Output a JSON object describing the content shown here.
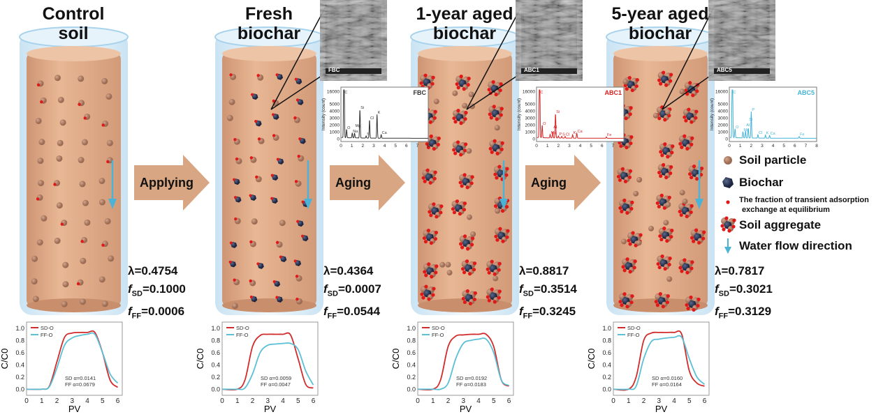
{
  "panels": [
    {
      "title_lines": [
        "Control",
        "soil"
      ],
      "lambda": "λ=0.4754",
      "f_sd": "=0.1000",
      "f_ff": "=0.0006",
      "particles": "soil"
    },
    {
      "title_lines": [
        "Fresh",
        "biochar"
      ],
      "lambda": "λ=0.4364",
      "f_sd": "=0.0007",
      "f_ff": "=0.0544",
      "particles": "biochar",
      "sem_label": "FBC"
    },
    {
      "title_lines": [
        "1-year aged",
        "biochar"
      ],
      "lambda": "λ=0.8817",
      "f_sd": "=0.3514",
      "f_ff": "=0.3245",
      "particles": "aggregate",
      "sem_label": "ABC1"
    },
    {
      "title_lines": [
        "5-year aged",
        "biochar"
      ],
      "lambda": "λ=0.7817",
      "f_sd": "=0.3021",
      "f_ff": "=0.3129",
      "particles": "aggregate",
      "sem_label": "ABC5"
    }
  ],
  "param_symbols": {
    "f": "f",
    "sd_sub": "SD",
    "ff_sub": "FF"
  },
  "process_arrows": [
    "Applying",
    "Aging",
    "Aging"
  ],
  "legend": {
    "soil_particle": "Soil particle",
    "biochar": "Biochar",
    "transient_line1": "The fraction of transient adsorption",
    "transient_line2": "exchange at equilibrium",
    "soil_aggregate": "Soil aggregate",
    "water_flow": "Water flow direction"
  },
  "colors": {
    "soil": "#b4826a",
    "biochar": "#2a3550",
    "adsorption_dot": "#e01818",
    "column": "#e2ad88",
    "glass": "#cfe6f5",
    "process_arrow": "#d9a683",
    "water_arrow": "#4bb4d6",
    "sd_curve": "#d22a2a",
    "ff_curve": "#5bbfd6",
    "eds_fbc": "#333333",
    "eds_abc1": "#d82020",
    "eds_abc5": "#44b4d6"
  },
  "chart_data": [
    {
      "type": "line",
      "xlabel": "PV",
      "ylabel": "C/C0",
      "xlim": [
        0,
        6.3
      ],
      "ylim": [
        -0.1,
        1.1
      ],
      "xticks": [
        "0",
        "1",
        "2",
        "3",
        "4",
        "5",
        "6"
      ],
      "yticks": [
        "0.0",
        "0.2",
        "0.4",
        "0.6",
        "0.8",
        "1.0"
      ],
      "legend": "top-left",
      "x": [
        0,
        1,
        1.5,
        2,
        2.5,
        3,
        3.5,
        4,
        4.5,
        5,
        5.5,
        6
      ],
      "series": [
        {
          "name": "SD-O",
          "values": [
            0,
            0,
            0.05,
            0.45,
            0.85,
            0.92,
            0.93,
            0.93,
            0.93,
            0.6,
            0.15,
            0.03
          ]
        },
        {
          "name": "FF-O",
          "values": [
            0,
            0,
            0.04,
            0.35,
            0.72,
            0.84,
            0.88,
            0.9,
            0.9,
            0.6,
            0.25,
            0.1
          ]
        }
      ],
      "annotation": [
        "SD α=0.0141",
        "FF  α=0.0679"
      ]
    },
    {
      "type": "line",
      "xlabel": "PV",
      "ylabel": "C/C0",
      "xlim": [
        0,
        6.3
      ],
      "ylim": [
        -0.1,
        1.1
      ],
      "xticks": [
        "0",
        "1",
        "2",
        "3",
        "4",
        "5",
        "6"
      ],
      "yticks": [
        "0.0",
        "0.2",
        "0.4",
        "0.6",
        "0.8",
        "1.0"
      ],
      "legend": "top-left",
      "x": [
        0,
        1,
        1.5,
        2,
        2.5,
        3,
        3.5,
        4,
        4.5,
        5,
        5.5,
        6
      ],
      "series": [
        {
          "name": "SD-O",
          "values": [
            0,
            0,
            0.15,
            0.7,
            0.88,
            0.9,
            0.9,
            0.9,
            0.89,
            0.5,
            0.08,
            0.02
          ]
        },
        {
          "name": "FF-O",
          "values": [
            0,
            0,
            0.02,
            0.25,
            0.6,
            0.72,
            0.74,
            0.75,
            0.75,
            0.65,
            0.3,
            0.07
          ]
        }
      ],
      "annotation": [
        "SD α=0.0059",
        "FF  α=0.0047"
      ]
    },
    {
      "type": "line",
      "xlabel": "PV",
      "ylabel": "C/C0",
      "xlim": [
        0,
        6.3
      ],
      "ylim": [
        -0.1,
        1.1
      ],
      "xticks": [
        "0",
        "1",
        "2",
        "3",
        "4",
        "5",
        "6"
      ],
      "yticks": [
        "0.0",
        "0.2",
        "0.4",
        "0.6",
        "0.8",
        "1.0"
      ],
      "legend": "top-left",
      "x": [
        0,
        1,
        1.5,
        2,
        2.5,
        3,
        3.5,
        4,
        4.5,
        5,
        5.5,
        6
      ],
      "series": [
        {
          "name": "SD-O",
          "values": [
            0,
            0,
            0.15,
            0.7,
            0.87,
            0.89,
            0.9,
            0.9,
            0.9,
            0.7,
            0.15,
            0.05
          ]
        },
        {
          "name": "FF-O",
          "values": [
            0,
            0,
            0,
            0.1,
            0.5,
            0.75,
            0.8,
            0.82,
            0.82,
            0.6,
            0.15,
            0.06
          ]
        }
      ],
      "annotation": [
        "SD α=0.0192",
        "FF  α=0.0183"
      ]
    },
    {
      "type": "line",
      "xlabel": "PV",
      "ylabel": "C/C0",
      "xlim": [
        0,
        6.3
      ],
      "ylim": [
        -0.1,
        1.1
      ],
      "xticks": [
        "0",
        "1",
        "2",
        "3",
        "4",
        "5",
        "6"
      ],
      "yticks": [
        "0.0",
        "0.2",
        "0.4",
        "0.6",
        "0.8",
        "1.0"
      ],
      "legend": "top-left",
      "x": [
        0,
        1,
        1.5,
        2,
        2.5,
        3,
        3.5,
        4,
        4.5,
        5,
        5.5,
        6
      ],
      "series": [
        {
          "name": "SD-O",
          "values": [
            0,
            0,
            0.2,
            0.8,
            0.92,
            0.93,
            0.93,
            0.93,
            0.9,
            0.3,
            0.1,
            0.05
          ]
        },
        {
          "name": "FF-O",
          "values": [
            0,
            0,
            0.05,
            0.5,
            0.78,
            0.82,
            0.84,
            0.85,
            0.85,
            0.5,
            0.2,
            0.08
          ]
        }
      ],
      "annotation": [
        "SD α=0.0160",
        "FF  α=0.0164"
      ]
    }
  ],
  "eds_data": [
    {
      "type": "line",
      "label": "FBC",
      "ylabel": "Intensity (count)",
      "xlim": [
        0,
        8
      ],
      "xticks": [
        "0",
        "1",
        "2",
        "3",
        "4",
        "5",
        "6",
        "7",
        "8"
      ],
      "yticks": [
        "0",
        "1000",
        "2000",
        "3000",
        "4000",
        "5000",
        "16000"
      ],
      "peaks": [
        [
          "C",
          0.28,
          16000
        ],
        [
          "O",
          0.52,
          1200
        ],
        [
          "Na",
          1.04,
          700
        ],
        [
          "Mg",
          1.25,
          700
        ],
        [
          "Si",
          1.74,
          4100
        ],
        [
          "S",
          2.31,
          300
        ],
        [
          "Cl",
          2.62,
          2600
        ],
        [
          "K",
          3.31,
          3400
        ],
        [
          "Ca",
          3.69,
          500
        ]
      ]
    },
    {
      "type": "line",
      "label": "ABC1",
      "ylabel": "Intensity (count)",
      "xlim": [
        0,
        8
      ],
      "xticks": [
        "0",
        "1",
        "2",
        "3",
        "4",
        "5",
        "6",
        "7",
        "8"
      ],
      "yticks": [
        "0",
        "1000",
        "2000",
        "3000",
        "4000",
        "5000",
        "16000"
      ],
      "peaks": [
        [
          "C",
          0.28,
          16000
        ],
        [
          "O",
          0.52,
          1800
        ],
        [
          "Mg",
          1.25,
          500
        ],
        [
          "Al",
          1.49,
          900
        ],
        [
          "Si",
          1.74,
          3500
        ],
        [
          "P",
          2.01,
          300
        ],
        [
          "S",
          2.31,
          250
        ],
        [
          "Cl",
          2.62,
          250
        ],
        [
          "K",
          3.31,
          500
        ],
        [
          "Ca",
          3.69,
          700
        ],
        [
          "Fe",
          6.4,
          200
        ]
      ]
    },
    {
      "type": "line",
      "label": "ABC5",
      "ylabel": "Intensity (count)",
      "xlim": [
        0,
        8
      ],
      "xticks": [
        "0",
        "1",
        "2",
        "3",
        "4",
        "5",
        "6",
        "7",
        "8"
      ],
      "yticks": [
        "0",
        "1000",
        "2000",
        "3000",
        "4000",
        "5000",
        "16000"
      ],
      "peaks": [
        [
          "C",
          0.28,
          16000
        ],
        [
          "O",
          0.52,
          1300
        ],
        [
          "Mg",
          1.25,
          900
        ],
        [
          "Al",
          1.49,
          1000
        ],
        [
          "Si",
          1.74,
          1400
        ],
        [
          "P",
          2.01,
          3800
        ],
        [
          "Cl",
          2.62,
          500
        ],
        [
          "K",
          3.31,
          450
        ],
        [
          "Ca",
          3.69,
          400
        ],
        [
          "Fe",
          6.4,
          250
        ]
      ]
    }
  ]
}
